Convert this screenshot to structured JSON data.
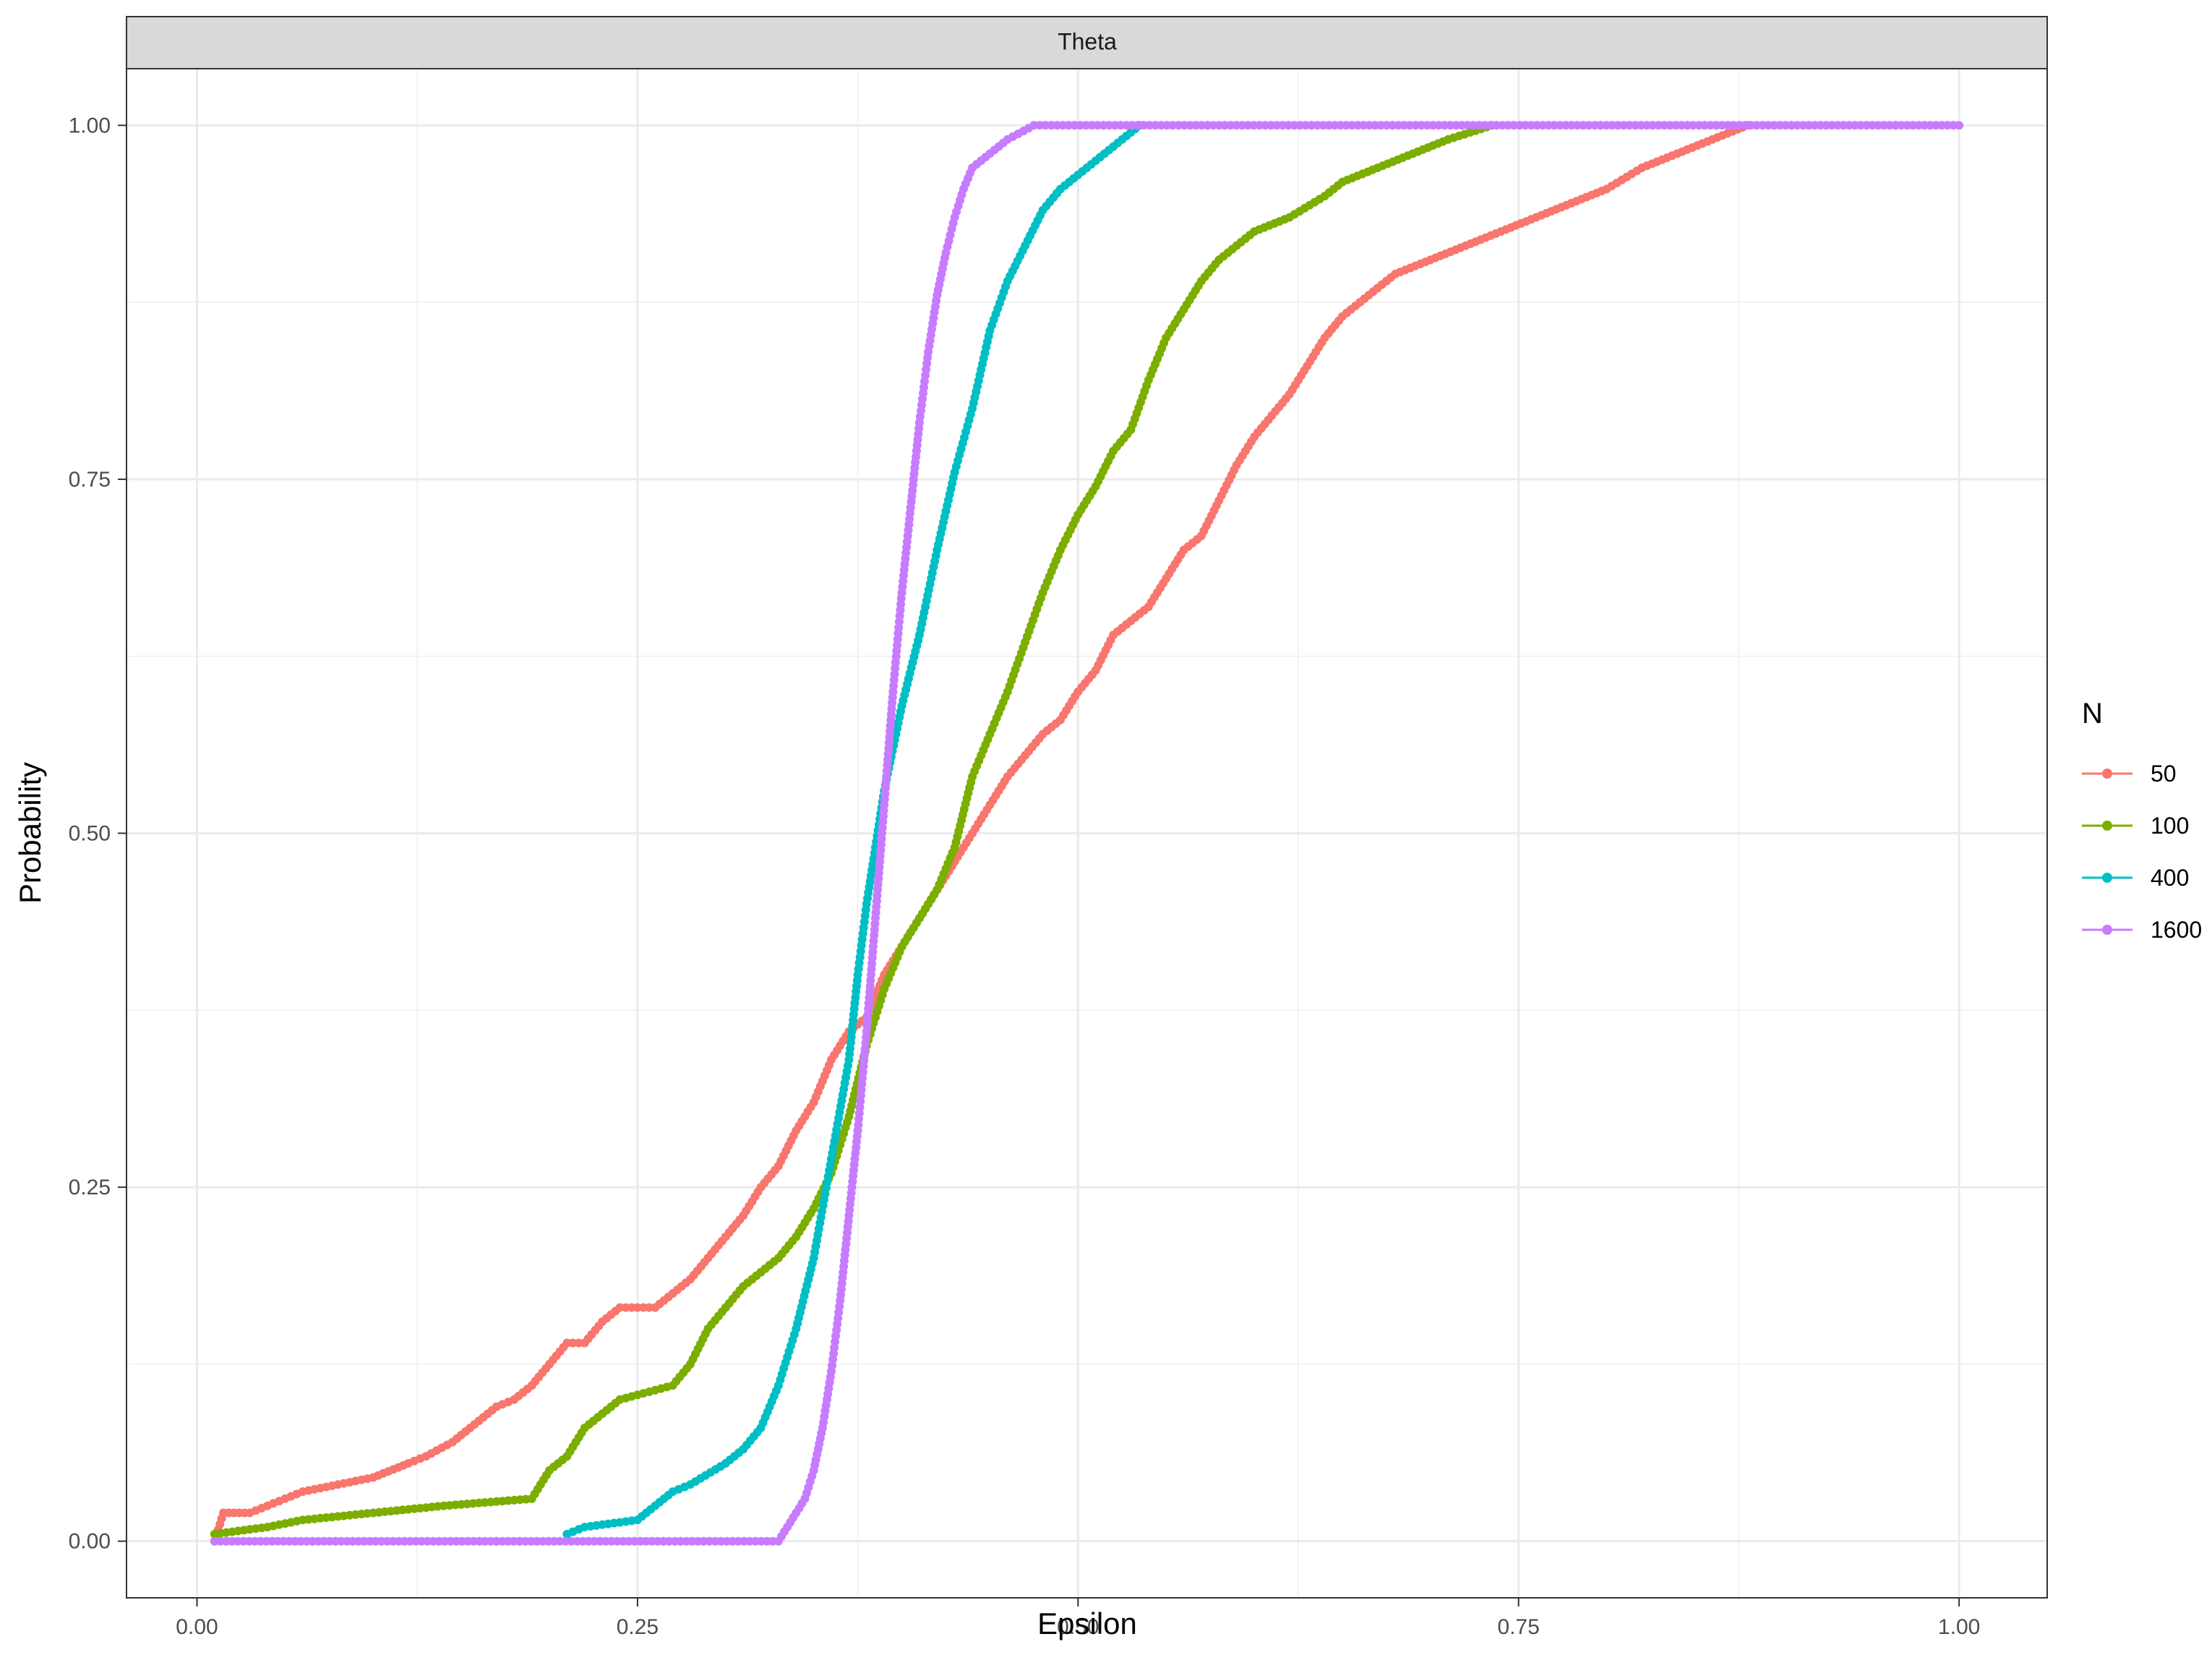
{
  "chart_data": {
    "type": "line",
    "title": "",
    "facet_label": "Theta",
    "xlabel": "Epsilon",
    "ylabel": "Probability",
    "xlim": [
      -0.04,
      1.05
    ],
    "ylim": [
      -0.04,
      1.04
    ],
    "x_ticks": [
      0.0,
      0.25,
      0.5,
      0.75,
      1.0
    ],
    "x_tick_labels": [
      "0.00",
      "0.25",
      "0.50",
      "0.75",
      "1.00"
    ],
    "y_ticks": [
      0.0,
      0.25,
      0.5,
      0.75,
      1.0
    ],
    "y_tick_labels": [
      "0.00",
      "0.25",
      "0.50",
      "0.75",
      "1.00"
    ],
    "grid": true,
    "legend": {
      "title": "N",
      "position": "right"
    },
    "series": [
      {
        "name": "50",
        "color": "#F8766D",
        "points": [
          [
            0.01,
            0.0
          ],
          [
            0.015,
            0.02
          ],
          [
            0.03,
            0.02
          ],
          [
            0.04,
            0.025
          ],
          [
            0.05,
            0.03
          ],
          [
            0.06,
            0.035
          ],
          [
            0.08,
            0.04
          ],
          [
            0.1,
            0.045
          ],
          [
            0.12,
            0.055
          ],
          [
            0.13,
            0.06
          ],
          [
            0.145,
            0.07
          ],
          [
            0.16,
            0.085
          ],
          [
            0.17,
            0.095
          ],
          [
            0.18,
            0.1
          ],
          [
            0.19,
            0.11
          ],
          [
            0.2,
            0.125
          ],
          [
            0.21,
            0.14
          ],
          [
            0.22,
            0.14
          ],
          [
            0.23,
            0.155
          ],
          [
            0.24,
            0.165
          ],
          [
            0.26,
            0.165
          ],
          [
            0.27,
            0.175
          ],
          [
            0.28,
            0.185
          ],
          [
            0.29,
            0.2
          ],
          [
            0.3,
            0.215
          ],
          [
            0.31,
            0.23
          ],
          [
            0.32,
            0.25
          ],
          [
            0.33,
            0.265
          ],
          [
            0.34,
            0.29
          ],
          [
            0.35,
            0.31
          ],
          [
            0.36,
            0.34
          ],
          [
            0.37,
            0.36
          ],
          [
            0.38,
            0.37
          ],
          [
            0.39,
            0.4
          ],
          [
            0.4,
            0.42
          ],
          [
            0.41,
            0.44
          ],
          [
            0.42,
            0.46
          ],
          [
            0.43,
            0.48
          ],
          [
            0.44,
            0.5
          ],
          [
            0.45,
            0.52
          ],
          [
            0.46,
            0.54
          ],
          [
            0.47,
            0.555
          ],
          [
            0.48,
            0.57
          ],
          [
            0.49,
            0.58
          ],
          [
            0.5,
            0.6
          ],
          [
            0.51,
            0.615
          ],
          [
            0.52,
            0.64
          ],
          [
            0.53,
            0.65
          ],
          [
            0.54,
            0.66
          ],
          [
            0.55,
            0.68
          ],
          [
            0.56,
            0.7
          ],
          [
            0.57,
            0.71
          ],
          [
            0.58,
            0.735
          ],
          [
            0.59,
            0.76
          ],
          [
            0.6,
            0.78
          ],
          [
            0.61,
            0.795
          ],
          [
            0.62,
            0.81
          ],
          [
            0.63,
            0.83
          ],
          [
            0.64,
            0.85
          ],
          [
            0.65,
            0.865
          ],
          [
            0.66,
            0.875
          ],
          [
            0.67,
            0.885
          ],
          [
            0.68,
            0.895
          ],
          [
            0.7,
            0.905
          ],
          [
            0.72,
            0.915
          ],
          [
            0.74,
            0.925
          ],
          [
            0.76,
            0.935
          ],
          [
            0.78,
            0.945
          ],
          [
            0.8,
            0.955
          ],
          [
            0.82,
            0.97
          ],
          [
            0.84,
            0.98
          ],
          [
            0.86,
            0.99
          ],
          [
            0.88,
            1.0
          ]
        ]
      },
      {
        "name": "100",
        "color": "#7CAE00",
        "points": [
          [
            0.01,
            0.005
          ],
          [
            0.04,
            0.01
          ],
          [
            0.06,
            0.015
          ],
          [
            0.1,
            0.02
          ],
          [
            0.14,
            0.025
          ],
          [
            0.19,
            0.03
          ],
          [
            0.2,
            0.05
          ],
          [
            0.21,
            0.06
          ],
          [
            0.22,
            0.08
          ],
          [
            0.23,
            0.09
          ],
          [
            0.24,
            0.1
          ],
          [
            0.27,
            0.11
          ],
          [
            0.28,
            0.125
          ],
          [
            0.29,
            0.15
          ],
          [
            0.3,
            0.165
          ],
          [
            0.31,
            0.18
          ],
          [
            0.32,
            0.19
          ],
          [
            0.33,
            0.2
          ],
          [
            0.34,
            0.215
          ],
          [
            0.35,
            0.235
          ],
          [
            0.36,
            0.26
          ],
          [
            0.37,
            0.3
          ],
          [
            0.38,
            0.35
          ],
          [
            0.39,
            0.39
          ],
          [
            0.4,
            0.42
          ],
          [
            0.41,
            0.44
          ],
          [
            0.42,
            0.46
          ],
          [
            0.43,
            0.49
          ],
          [
            0.44,
            0.54
          ],
          [
            0.45,
            0.57
          ],
          [
            0.46,
            0.6
          ],
          [
            0.47,
            0.635
          ],
          [
            0.48,
            0.67
          ],
          [
            0.49,
            0.7
          ],
          [
            0.5,
            0.725
          ],
          [
            0.51,
            0.745
          ],
          [
            0.52,
            0.77
          ],
          [
            0.53,
            0.785
          ],
          [
            0.54,
            0.82
          ],
          [
            0.55,
            0.85
          ],
          [
            0.56,
            0.87
          ],
          [
            0.57,
            0.89
          ],
          [
            0.58,
            0.905
          ],
          [
            0.59,
            0.915
          ],
          [
            0.6,
            0.925
          ],
          [
            0.62,
            0.935
          ],
          [
            0.64,
            0.95
          ],
          [
            0.65,
            0.96
          ],
          [
            0.67,
            0.97
          ],
          [
            0.69,
            0.98
          ],
          [
            0.71,
            0.99
          ],
          [
            0.735,
            1.0
          ]
        ]
      },
      {
        "name": "400",
        "color": "#00BFC4",
        "points": [
          [
            0.21,
            0.005
          ],
          [
            0.22,
            0.01
          ],
          [
            0.25,
            0.015
          ],
          [
            0.26,
            0.025
          ],
          [
            0.27,
            0.035
          ],
          [
            0.28,
            0.04
          ],
          [
            0.3,
            0.055
          ],
          [
            0.31,
            0.065
          ],
          [
            0.32,
            0.08
          ],
          [
            0.33,
            0.11
          ],
          [
            0.34,
            0.15
          ],
          [
            0.35,
            0.2
          ],
          [
            0.36,
            0.27
          ],
          [
            0.37,
            0.34
          ],
          [
            0.375,
            0.4
          ],
          [
            0.38,
            0.45
          ],
          [
            0.385,
            0.49
          ],
          [
            0.39,
            0.53
          ],
          [
            0.4,
            0.59
          ],
          [
            0.41,
            0.64
          ],
          [
            0.42,
            0.7
          ],
          [
            0.43,
            0.755
          ],
          [
            0.44,
            0.8
          ],
          [
            0.45,
            0.855
          ],
          [
            0.46,
            0.89
          ],
          [
            0.47,
            0.915
          ],
          [
            0.48,
            0.94
          ],
          [
            0.49,
            0.955
          ],
          [
            0.5,
            0.965
          ],
          [
            0.51,
            0.975
          ],
          [
            0.52,
            0.985
          ],
          [
            0.535,
            1.0
          ]
        ]
      },
      {
        "name": "1600",
        "color": "#C77CFF",
        "points": [
          [
            0.01,
            0.0
          ],
          [
            0.33,
            0.0
          ],
          [
            0.335,
            0.01
          ],
          [
            0.34,
            0.02
          ],
          [
            0.345,
            0.03
          ],
          [
            0.35,
            0.05
          ],
          [
            0.355,
            0.08
          ],
          [
            0.36,
            0.12
          ],
          [
            0.365,
            0.17
          ],
          [
            0.37,
            0.23
          ],
          [
            0.375,
            0.29
          ],
          [
            0.38,
            0.36
          ],
          [
            0.385,
            0.44
          ],
          [
            0.39,
            0.52
          ],
          [
            0.395,
            0.6
          ],
          [
            0.4,
            0.67
          ],
          [
            0.405,
            0.73
          ],
          [
            0.41,
            0.79
          ],
          [
            0.415,
            0.84
          ],
          [
            0.42,
            0.88
          ],
          [
            0.425,
            0.91
          ],
          [
            0.43,
            0.935
          ],
          [
            0.435,
            0.955
          ],
          [
            0.44,
            0.97
          ],
          [
            0.45,
            0.98
          ],
          [
            0.46,
            0.99
          ],
          [
            0.475,
            1.0
          ],
          [
            1.0,
            1.0
          ]
        ]
      }
    ]
  }
}
